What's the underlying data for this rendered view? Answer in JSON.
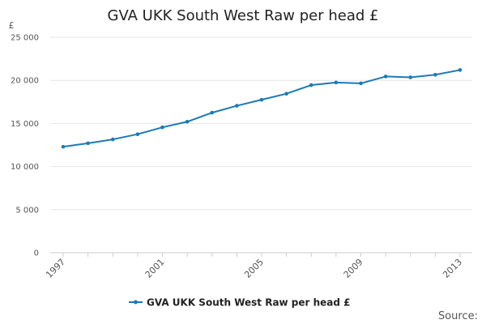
{
  "chart_data": {
    "type": "line",
    "title": "GVA UKK South West Raw per head £",
    "y_unit_label": "£",
    "x": [
      1997,
      1998,
      1999,
      2000,
      2001,
      2002,
      2003,
      2004,
      2005,
      2006,
      2007,
      2008,
      2009,
      2010,
      2011,
      2012,
      2013
    ],
    "x_tick_labels": [
      "1997",
      "2001",
      "2005",
      "2009",
      "2013"
    ],
    "x_tick_values": [
      1997,
      2001,
      2005,
      2009,
      2013
    ],
    "series": [
      {
        "name": "GVA UKK South West Raw per head £",
        "color": "#1a7ab8",
        "values": [
          12300,
          12700,
          13150,
          13750,
          14550,
          15200,
          16250,
          17050,
          17750,
          18450,
          19450,
          19750,
          19650,
          20450,
          20350,
          20650,
          21200
        ]
      }
    ],
    "y_ticks": [
      0,
      5000,
      10000,
      15000,
      20000,
      25000
    ],
    "y_tick_labels": [
      "0",
      "5 000",
      "10 000",
      "15 000",
      "20 000",
      "25 000"
    ],
    "ylim": [
      0,
      25000
    ],
    "xlim": [
      1997,
      2013
    ],
    "grid": true,
    "legend_position": "bottom"
  },
  "footer": {
    "source_label": "Source:"
  }
}
